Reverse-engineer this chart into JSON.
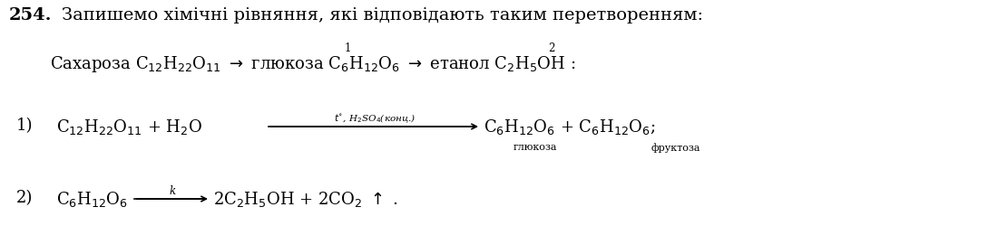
{
  "background_color": "#ffffff",
  "figsize": [
    11.0,
    2.51
  ],
  "dpi": 100,
  "line1_num": "254.",
  "line1_text": "Запишемо хімічні рівняння, які відповідають таким перетворенням:",
  "line2_text": "Сахароза C$_{12}$H$_{22}$O$_{11}$ $\\rightarrow$ глюкоза C$_{6}$H$_{12}$O$_{6}$ $\\rightarrow$ етанол C$_{2}$H$_{5}$OH :",
  "arrow1_num": "1",
  "arrow2_num": "2",
  "eq1_num": "1)",
  "eq1_left": "C$_{12}$H$_{22}$O$_{11}$ + H$_{2}$O",
  "eq1_above": "$t^{\\circ}$, H$_{2}$SO$_{4}$(конц.)",
  "eq1_right": "C$_{6}$H$_{12}$O$_{6}$ + C$_{6}$H$_{12}$O$_{6}$;",
  "eq1_sub1": "глюкоза",
  "eq1_sub2": "фруктоза",
  "eq2_num": "2)",
  "eq2_left": "C$_{6}$H$_{12}$O$_{6}$",
  "eq2_above": "k",
  "eq2_right": "2C$_{2}$H$_{5}$OH + 2CO$_{2}$ $\\uparrow$ ."
}
